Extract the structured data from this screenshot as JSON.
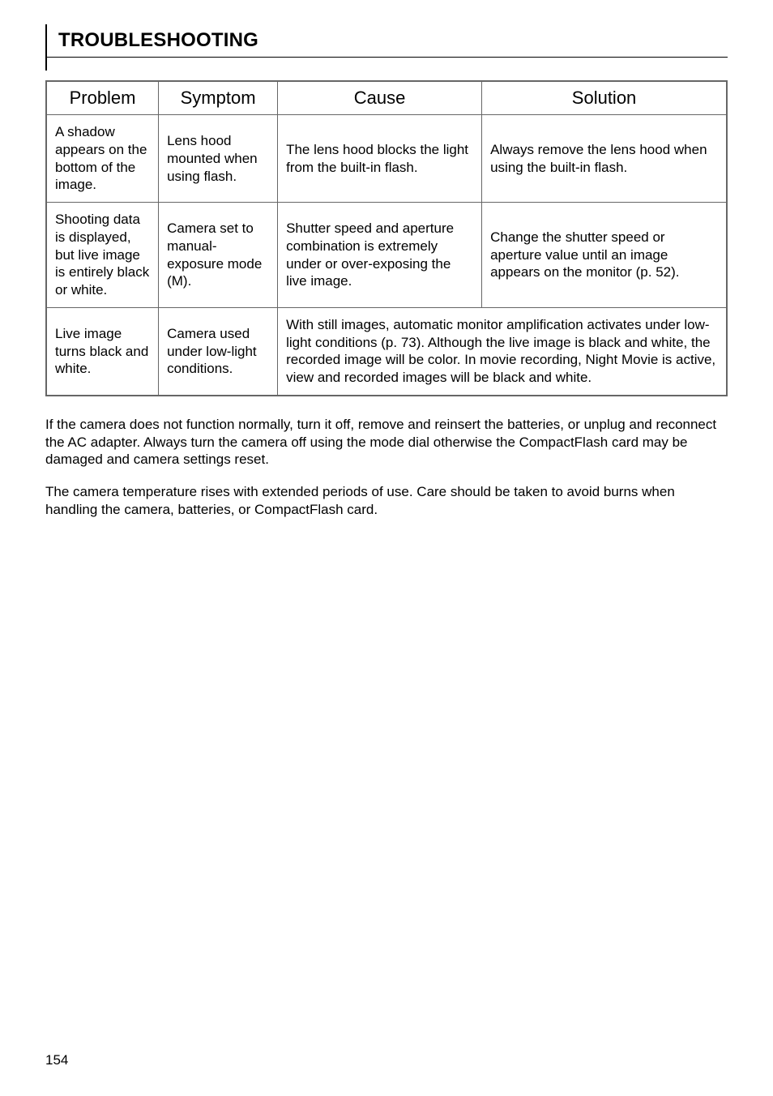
{
  "heading": "TROUBLESHOOTING",
  "table": {
    "headers": [
      "Problem",
      "Symptom",
      "Cause",
      "Solution"
    ],
    "rows": [
      {
        "problem": "A shadow appears on the bottom of the image.",
        "symptom": "Lens hood mounted when using flash.",
        "cause": "The lens hood blocks the light from the built-in flash.",
        "solution": "Always remove the lens hood when using the built-in flash."
      },
      {
        "problem": "Shooting data is displayed, but live image is entirely black or white.",
        "symptom": "Camera set to manual-exposure mode (M).",
        "cause": "Shutter speed and aperture combination is extremely under or over-exposing the live image.",
        "solution": "Change the shutter speed or aperture value until an image appears on the monitor (p. 52)."
      },
      {
        "problem": "Live image turns black and white.",
        "symptom": "Camera used under low-light conditions.",
        "cause_solution_merged": "With still images, automatic monitor amplification activates under low-light conditions (p. 73). Although the live image is black and white, the recorded image will be color. In movie recording, Night Movie is active, view and recorded images will be black and white."
      }
    ]
  },
  "para1": "If the camera does not function normally, turn it off, remove and reinsert the batteries, or unplug and reconnect the AC adapter. Always turn the camera off using the mode dial otherwise the CompactFlash card may be damaged and camera settings reset.",
  "para2": "The camera temperature rises with extended periods of use. Care should be taken to avoid burns when handling the camera, batteries, or CompactFlash card.",
  "pagenum": "154"
}
